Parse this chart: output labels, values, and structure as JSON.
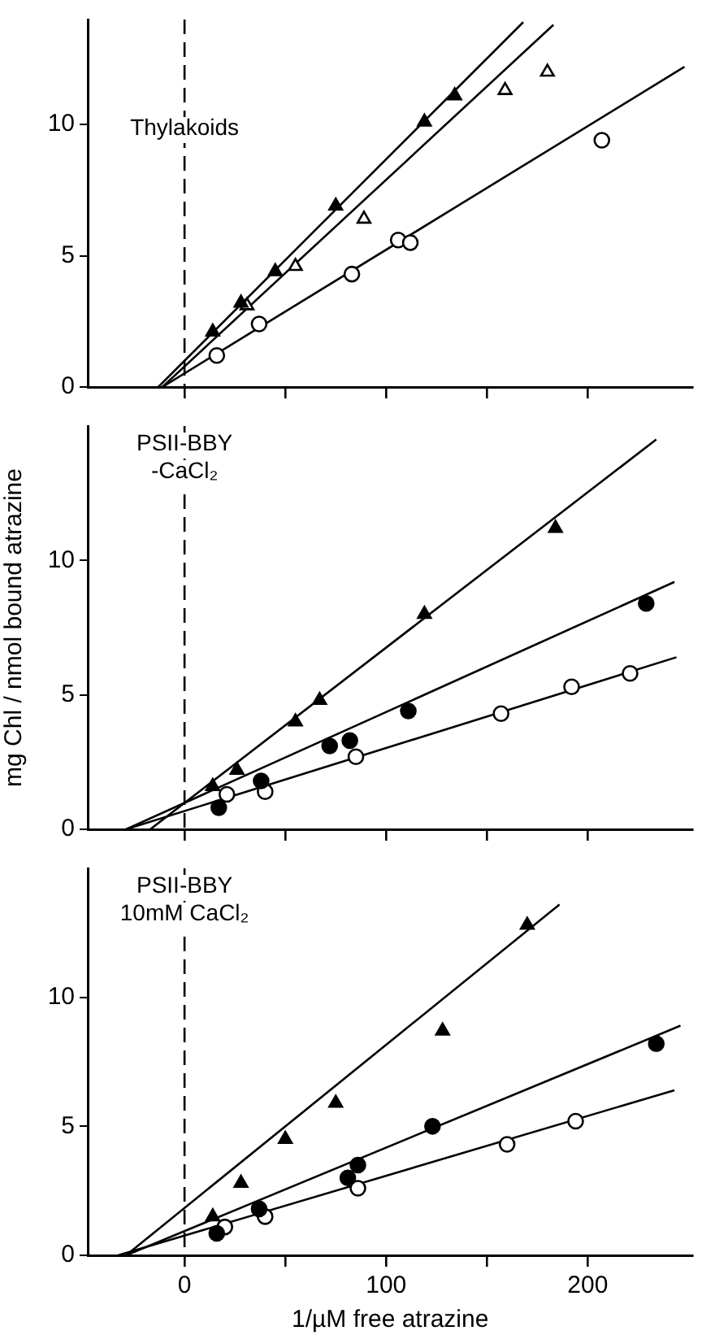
{
  "chart_data": [
    {
      "type": "scatter",
      "title": "Thylakoids",
      "xlim": [
        -48,
        252
      ],
      "xticks": [
        0,
        50,
        100,
        150,
        200
      ],
      "ylim": [
        0,
        14
      ],
      "yticks": [
        0,
        5,
        10
      ],
      "tick_labels": "y",
      "legend": false,
      "ref_lines": [
        {
          "axis": "x",
          "value": 0,
          "line_style": "dashed",
          "color": "#000000"
        }
      ],
      "series": [
        {
          "type": "scatter",
          "marker": "triangle",
          "color": "#000000",
          "x": [
            14,
            28,
            45,
            75,
            119,
            134
          ],
          "values": [
            2.1,
            3.2,
            4.4,
            6.9,
            10.1,
            11.1
          ]
        },
        {
          "type": "scatter",
          "marker": "triangle",
          "color": "#ffffff",
          "x": [
            31,
            55,
            89,
            159,
            180
          ],
          "values": [
            3.1,
            4.6,
            6.4,
            11.3,
            12.0
          ]
        },
        {
          "type": "scatter",
          "marker": "circle",
          "color": "#ffffff",
          "x": [
            16,
            37,
            83,
            106,
            112,
            207
          ],
          "values": [
            1.2,
            2.4,
            4.3,
            5.6,
            5.5,
            9.4
          ]
        },
        {
          "type": "line",
          "marker": "none",
          "line_style": "solid",
          "color": "#000000",
          "x": [
            -13,
            168
          ],
          "values": [
            0,
            13.9
          ]
        },
        {
          "type": "line",
          "marker": "none",
          "line_style": "solid",
          "color": "#000000",
          "x": [
            -11,
            183
          ],
          "values": [
            0,
            13.8
          ]
        },
        {
          "type": "line",
          "marker": "none",
          "line_style": "solid",
          "color": "#000000",
          "x": [
            -11,
            248
          ],
          "values": [
            0,
            12.2
          ]
        }
      ]
    },
    {
      "type": "scatter",
      "title": "PSII-BBY -CaCl₂",
      "ylabel": "mg Chl / nmol bound atrazine",
      "xlim": [
        -48,
        252
      ],
      "xticks": [
        0,
        50,
        100,
        150,
        200
      ],
      "ylim": [
        0,
        15
      ],
      "yticks": [
        0,
        5,
        10
      ],
      "tick_labels": "y",
      "legend": false,
      "ref_lines": [
        {
          "axis": "x",
          "value": 0,
          "line_style": "dashed",
          "color": "#000000"
        }
      ],
      "series": [
        {
          "type": "scatter",
          "marker": "triangle",
          "color": "#000000",
          "x": [
            14,
            26,
            55,
            67,
            119,
            184
          ],
          "values": [
            1.6,
            2.2,
            4.0,
            4.8,
            8.0,
            11.2
          ]
        },
        {
          "type": "scatter",
          "marker": "circle",
          "color": "#000000",
          "x": [
            17,
            38,
            72,
            82,
            111,
            229
          ],
          "values": [
            0.8,
            1.8,
            3.1,
            3.3,
            4.4,
            8.4
          ]
        },
        {
          "type": "scatter",
          "marker": "circle",
          "color": "#ffffff",
          "x": [
            21,
            40,
            85,
            157,
            192,
            221
          ],
          "values": [
            1.3,
            1.4,
            2.7,
            4.3,
            5.3,
            5.8
          ]
        },
        {
          "type": "line",
          "marker": "none",
          "line_style": "solid",
          "color": "#000000",
          "x": [
            -17,
            234
          ],
          "values": [
            0,
            14.5
          ]
        },
        {
          "type": "line",
          "marker": "none",
          "line_style": "solid",
          "color": "#000000",
          "x": [
            -29,
            243
          ],
          "values": [
            0,
            9.2
          ]
        },
        {
          "type": "line",
          "marker": "none",
          "line_style": "solid",
          "color": "#000000",
          "x": [
            -29,
            244
          ],
          "values": [
            0,
            6.4
          ]
        }
      ]
    },
    {
      "type": "scatter",
      "title": "PSII-BBY 10mM CaCl₂",
      "xlabel": "1/µM free atrazine",
      "xlim": [
        -48,
        252
      ],
      "xticks": [
        0,
        {
          "value": 50,
          "label": null
        },
        100,
        {
          "value": 150,
          "label": null
        },
        200
      ],
      "ylim": [
        0,
        15
      ],
      "yticks": [
        0,
        5,
        10
      ],
      "legend": false,
      "ref_lines": [
        {
          "axis": "x",
          "value": 0,
          "line_style": "dashed",
          "color": "#000000"
        }
      ],
      "series": [
        {
          "type": "scatter",
          "marker": "triangle",
          "color": "#000000",
          "x": [
            14,
            28,
            50,
            75,
            128,
            170
          ],
          "values": [
            1.5,
            2.8,
            4.5,
            5.9,
            8.7,
            12.8
          ]
        },
        {
          "type": "scatter",
          "marker": "circle",
          "color": "#000000",
          "x": [
            16,
            37,
            81,
            86,
            123,
            234
          ],
          "values": [
            0.85,
            1.8,
            3.0,
            3.5,
            5.0,
            8.2
          ]
        },
        {
          "type": "scatter",
          "marker": "circle",
          "color": "#ffffff",
          "x": [
            20,
            40,
            86,
            160,
            194
          ],
          "values": [
            1.1,
            1.5,
            2.6,
            4.3,
            5.2
          ]
        },
        {
          "type": "line",
          "marker": "none",
          "line_style": "solid",
          "color": "#000000",
          "x": [
            -29,
            186
          ],
          "values": [
            0,
            13.6
          ]
        },
        {
          "type": "line",
          "marker": "none",
          "line_style": "solid",
          "color": "#000000",
          "x": [
            -29,
            246
          ],
          "values": [
            0,
            8.9
          ]
        },
        {
          "type": "line",
          "marker": "none",
          "line_style": "solid",
          "color": "#000000",
          "x": [
            -33,
            243
          ],
          "values": [
            0,
            6.4
          ]
        }
      ]
    }
  ]
}
